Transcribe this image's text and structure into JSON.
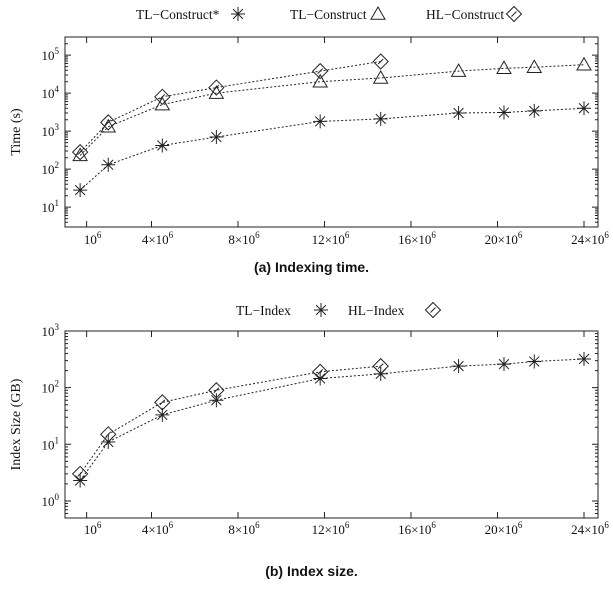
{
  "chart_data": [
    {
      "type": "line",
      "caption": "(a) Indexing time.",
      "ylabel": "Time (s)",
      "xlabel": "",
      "y_scale": "log",
      "ylim": [
        3,
        300000
      ],
      "xlim": [
        0,
        24000000
      ],
      "grid": false,
      "legend_position": "top",
      "x_ticks": [
        {
          "value": 1000000,
          "base": "10",
          "exp": "6"
        },
        {
          "value": 4000000,
          "base": "4×10",
          "exp": "6"
        },
        {
          "value": 8000000,
          "base": "8×10",
          "exp": "6"
        },
        {
          "value": 12000000,
          "base": "12×10",
          "exp": "6"
        },
        {
          "value": 16000000,
          "base": "16×10",
          "exp": "6"
        },
        {
          "value": 20000000,
          "base": "20×10",
          "exp": "6"
        },
        {
          "value": 24000000,
          "base": "24×10",
          "exp": "6"
        }
      ],
      "y_ticks": [
        {
          "value": 10,
          "base": "10",
          "exp": "1"
        },
        {
          "value": 100,
          "base": "10",
          "exp": "2"
        },
        {
          "value": 1000,
          "base": "10",
          "exp": "3"
        },
        {
          "value": 10000,
          "base": "10",
          "exp": "4"
        },
        {
          "value": 100000,
          "base": "10",
          "exp": "5"
        }
      ],
      "series": [
        {
          "name": "TL−Construct*",
          "marker": "asterisk",
          "x": [
            700000,
            2000000,
            4500000,
            7000000,
            11800000,
            14600000,
            18200000,
            20300000,
            21700000,
            24000000
          ],
          "y": [
            28,
            130,
            420,
            700,
            1800,
            2100,
            3000,
            3100,
            3400,
            4000
          ]
        },
        {
          "name": "TL−Construct",
          "marker": "triangle",
          "x": [
            700000,
            2000000,
            4500000,
            7000000,
            11800000,
            14600000,
            18200000,
            20300000,
            21700000,
            24000000
          ],
          "y": [
            230,
            1300,
            5000,
            10000,
            20000,
            25000,
            38000,
            45000,
            48000,
            56000
          ]
        },
        {
          "name": "HL−Construct",
          "marker": "diamond",
          "x": [
            700000,
            2000000,
            4500000,
            7000000,
            11800000,
            14600000
          ],
          "y": [
            280,
            1700,
            8000,
            14000,
            38000,
            68000
          ]
        }
      ]
    },
    {
      "type": "line",
      "caption": "(b) Index size.",
      "ylabel": "Index Size (GB)",
      "xlabel": "",
      "y_scale": "log",
      "ylim": [
        0.5,
        1000
      ],
      "xlim": [
        0,
        24000000
      ],
      "grid": false,
      "legend_position": "top",
      "x_ticks": [
        {
          "value": 1000000,
          "base": "10",
          "exp": "6"
        },
        {
          "value": 4000000,
          "base": "4×10",
          "exp": "6"
        },
        {
          "value": 8000000,
          "base": "8×10",
          "exp": "6"
        },
        {
          "value": 12000000,
          "base": "12×10",
          "exp": "6"
        },
        {
          "value": 16000000,
          "base": "16×10",
          "exp": "6"
        },
        {
          "value": 20000000,
          "base": "20×10",
          "exp": "6"
        },
        {
          "value": 24000000,
          "base": "24×10",
          "exp": "6"
        }
      ],
      "y_ticks": [
        {
          "value": 1,
          "base": "10",
          "exp": "0"
        },
        {
          "value": 10,
          "base": "10",
          "exp": "1"
        },
        {
          "value": 100,
          "base": "10",
          "exp": "2"
        },
        {
          "value": 1000,
          "base": "10",
          "exp": "3"
        }
      ],
      "series": [
        {
          "name": "TL−Index",
          "marker": "asterisk",
          "x": [
            700000,
            2000000,
            4500000,
            7000000,
            11800000,
            14600000,
            18200000,
            20300000,
            21700000,
            24000000
          ],
          "y": [
            2.3,
            11,
            33,
            60,
            145,
            175,
            240,
            260,
            290,
            320
          ]
        },
        {
          "name": "HL−Index",
          "marker": "diamond",
          "x": [
            700000,
            2000000,
            4500000,
            7000000,
            11800000,
            14600000
          ],
          "y": [
            3,
            15,
            55,
            90,
            190,
            240
          ]
        }
      ]
    }
  ]
}
